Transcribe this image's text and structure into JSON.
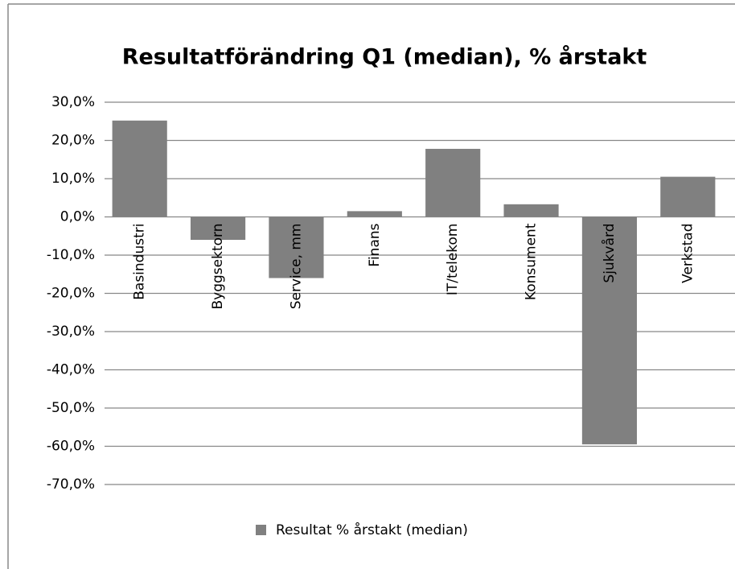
{
  "chart_data": {
    "type": "bar",
    "title": "Resultatförändring Q1 (median), % årstakt",
    "categories": [
      "Basindustri",
      "Byggsektorn",
      "Service, mm",
      "Finans",
      "IT/telekom",
      "Konsument",
      "Sjukvård",
      "Verkstad"
    ],
    "series": [
      {
        "name": "Resultat % årstakt (median)",
        "color": "#808080",
        "values": [
          25.2,
          -6,
          -16,
          1.5,
          17.8,
          3.3,
          -59.5,
          10.5
        ]
      }
    ],
    "ylim": [
      -70,
      30
    ],
    "yticks": [
      {
        "value": -70,
        "label": "-70,0%"
      },
      {
        "value": -60,
        "label": "-60,0%"
      },
      {
        "value": -50,
        "label": "-50,0%"
      },
      {
        "value": -40,
        "label": "-40,0%"
      },
      {
        "value": -30,
        "label": "-30,0%"
      },
      {
        "value": -20,
        "label": "-20,0%"
      },
      {
        "value": -10,
        "label": "-10,0%"
      },
      {
        "value": 0,
        "label": "0,0%"
      },
      {
        "value": 10,
        "label": "10,0%"
      },
      {
        "value": 20,
        "label": "20,0%"
      },
      {
        "value": 30,
        "label": "30,0%"
      }
    ],
    "grid": true,
    "legend": "bottom"
  }
}
